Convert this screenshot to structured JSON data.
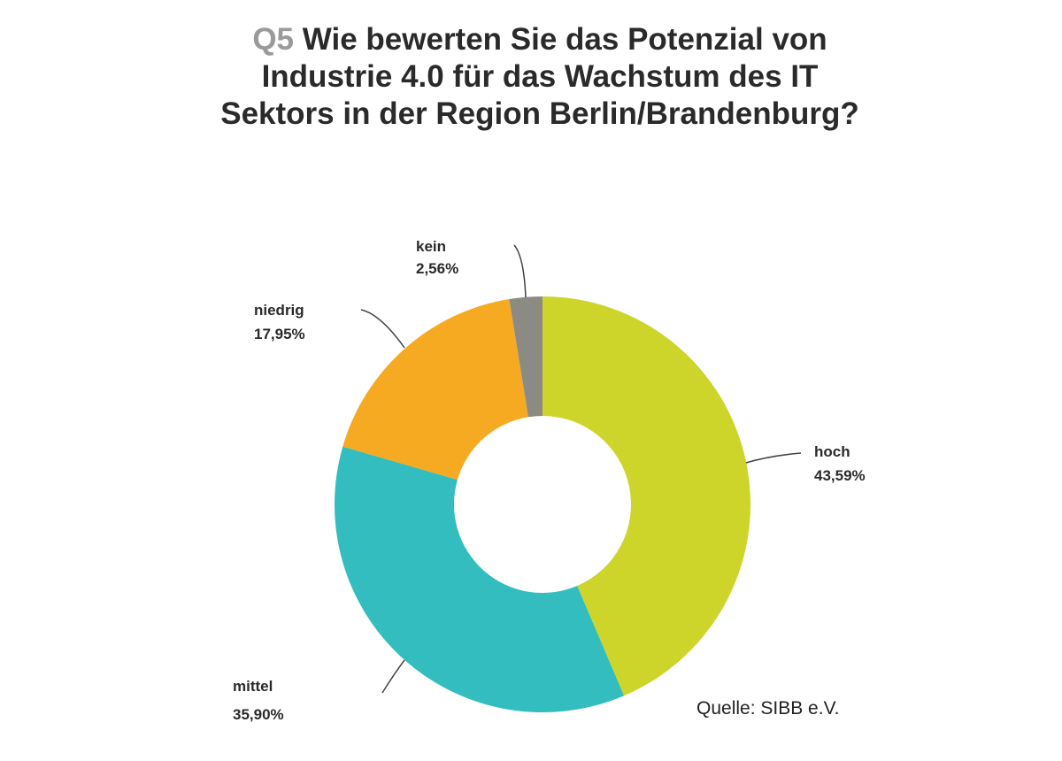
{
  "chart_data": {
    "type": "pie",
    "variant": "donut",
    "title_prefix": "Q5",
    "title_lines": [
      "Wie bewerten Sie das Potenzial von",
      "Industrie 4.0 für das Wachstum des IT",
      "Sektors in der Region Berlin/Brandenburg?"
    ],
    "slices": [
      {
        "label": "hoch",
        "value_label": "43,59%",
        "value": 43.59,
        "color": "#cdd52b"
      },
      {
        "label": "mittel",
        "value_label": "35,90%",
        "value": 35.9,
        "color": "#33bdbf"
      },
      {
        "label": "niedrig",
        "value_label": "17,95%",
        "value": 17.95,
        "color": "#f5aa22"
      },
      {
        "label": "kein",
        "value_label": "2,56%",
        "value": 2.56,
        "color": "#8b8b83"
      }
    ],
    "source": "Quelle: SIBB e.V."
  }
}
